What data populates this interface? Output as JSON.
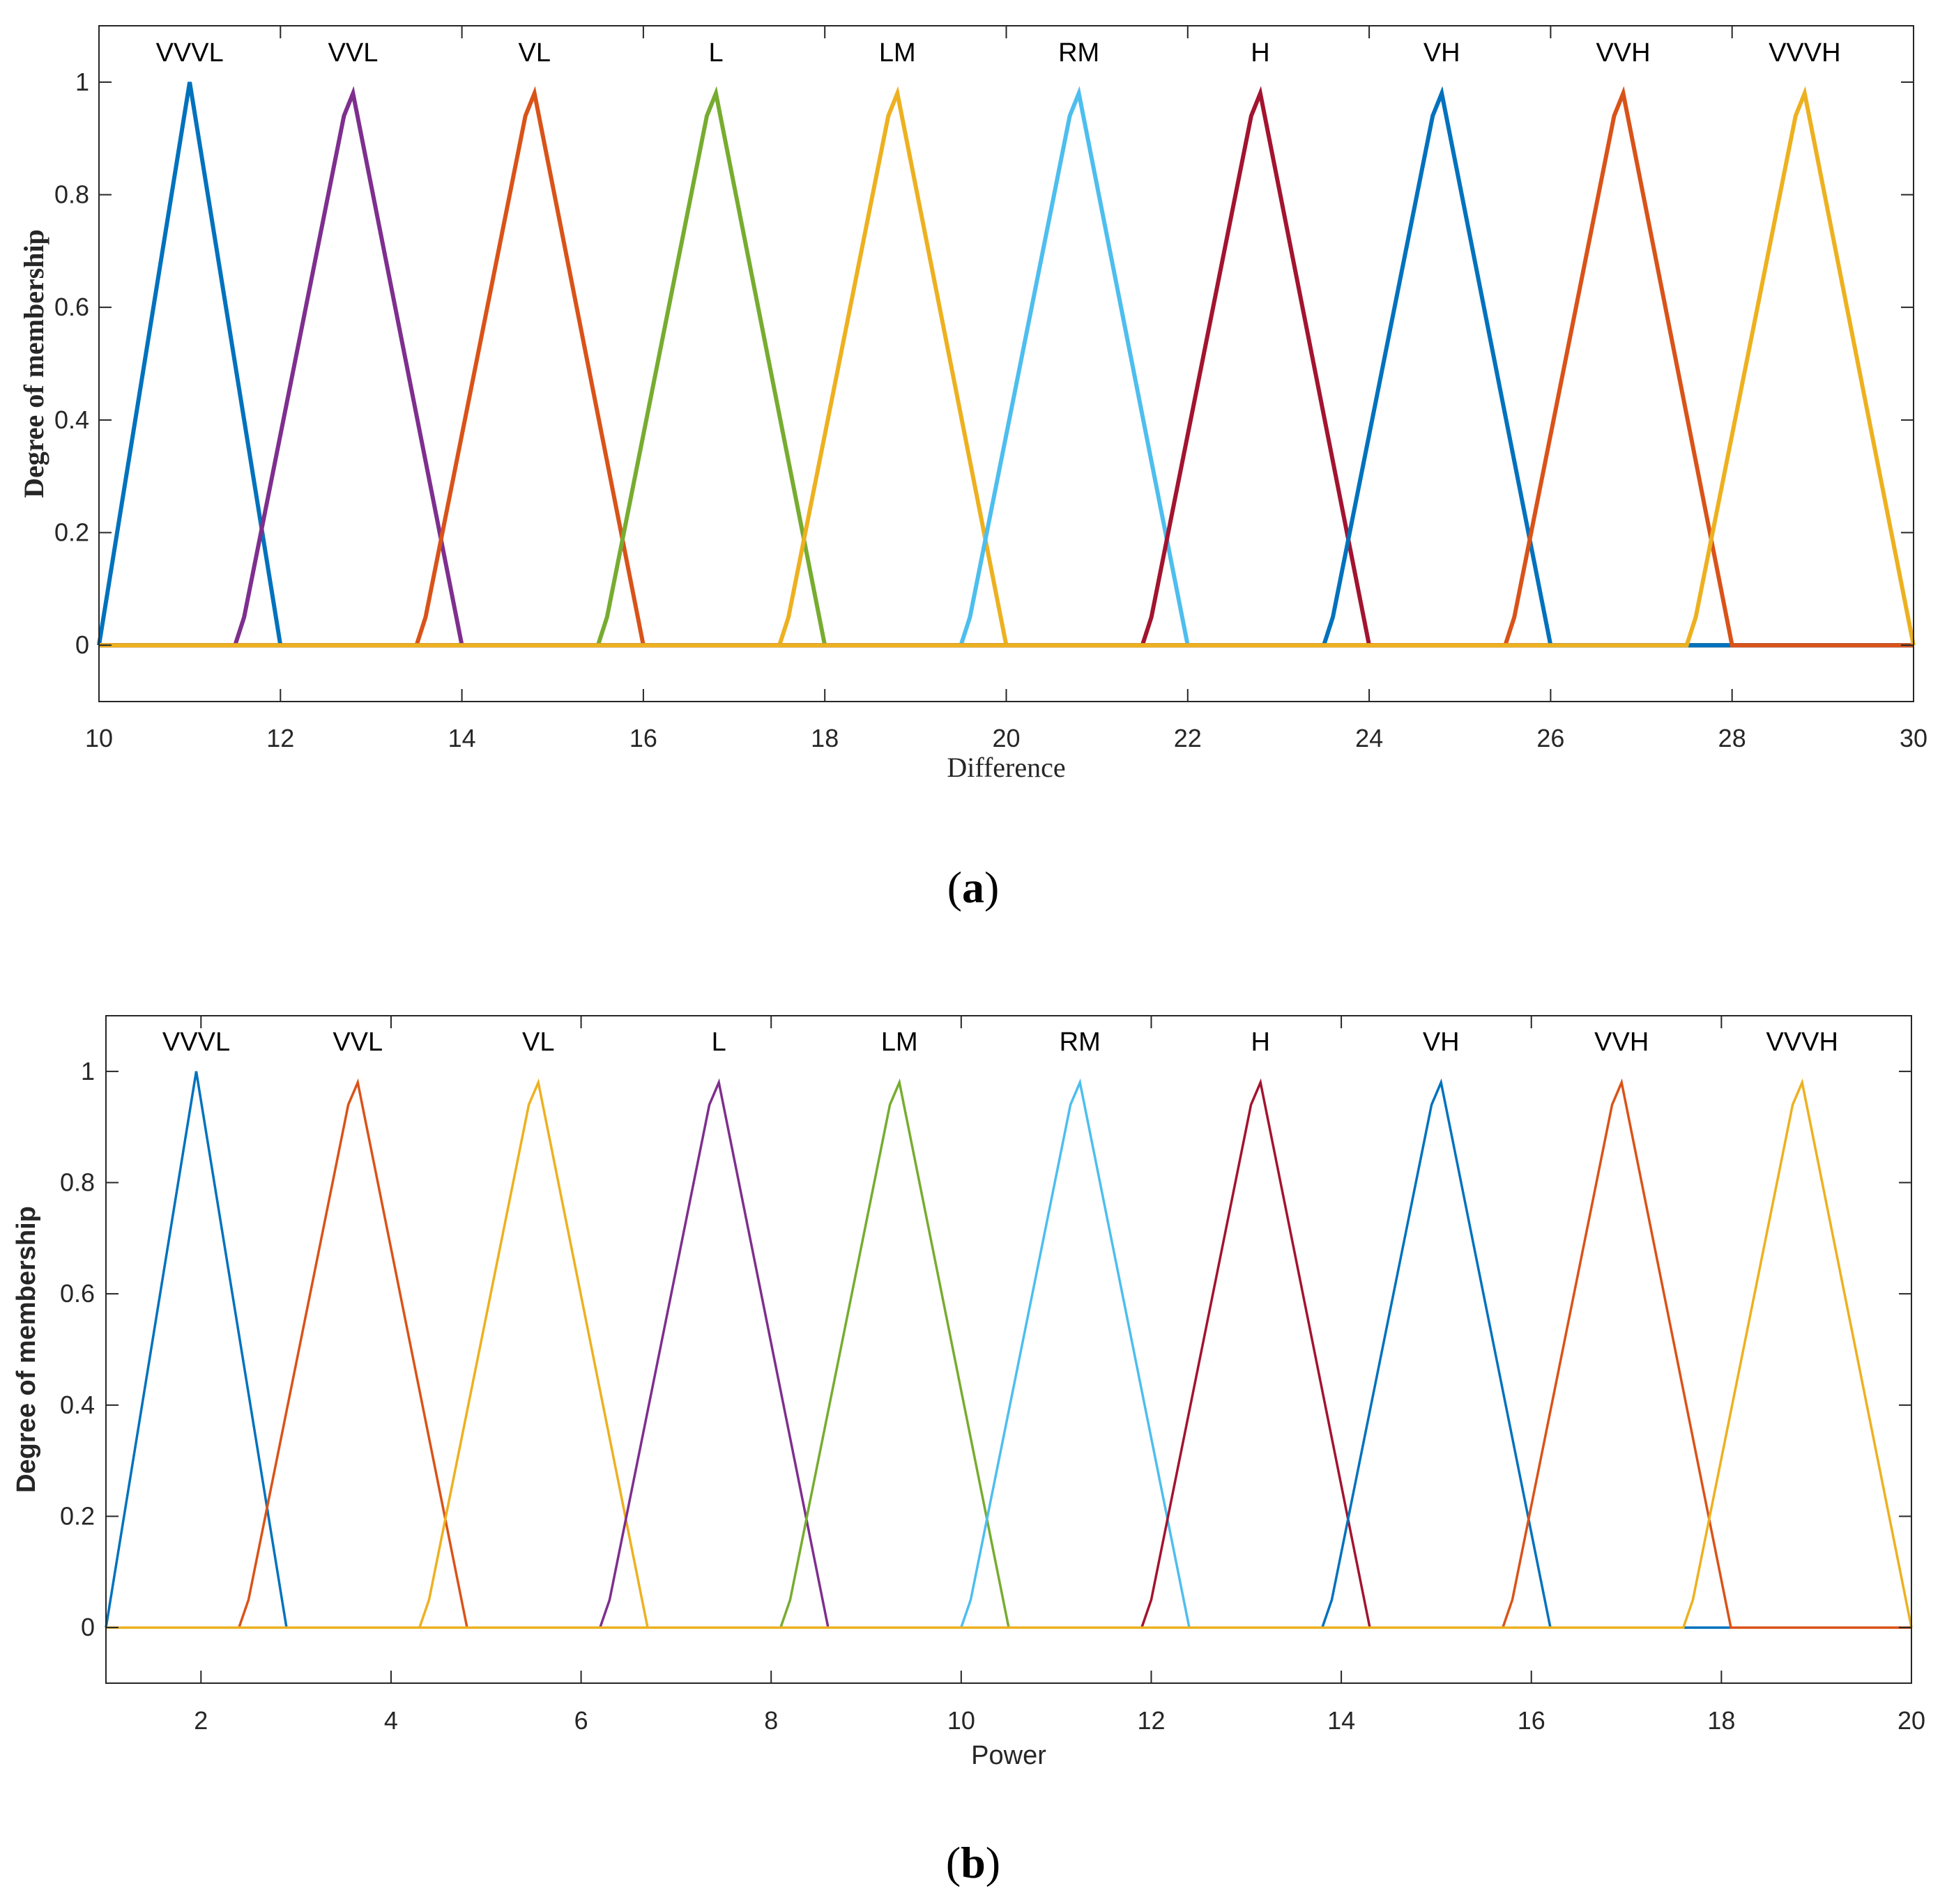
{
  "colors": {
    "blue": "#0072BD",
    "orange": "#D95319",
    "yellow": "#EDB120",
    "purple": "#7E2F8E",
    "green": "#77AC30",
    "cyan": "#4DBEEE",
    "red": "#A2142F"
  },
  "chart_data": [
    {
      "type": "line",
      "panel_label": "(a)",
      "xlabel": "Difference",
      "ylabel": "Degree of membership",
      "xlim": [
        10,
        30
      ],
      "ylim": [
        -0.1,
        1.1
      ],
      "xticks": [
        "10",
        "12",
        "14",
        "16",
        "18",
        "20",
        "22",
        "24",
        "26",
        "28",
        "30"
      ],
      "yticks": [
        "0",
        "0.2",
        "0.4",
        "0.6",
        "0.8",
        "1"
      ],
      "grid": false,
      "legend": "none",
      "series": [
        {
          "name": "VVVL",
          "color": "blue",
          "points": [
            [
              10,
              0
            ],
            [
              11,
              1
            ],
            [
              12,
              0
            ],
            [
              30,
              0
            ]
          ]
        },
        {
          "name": "VVL",
          "color": "purple",
          "points": [
            [
              10,
              0
            ],
            [
              11.5,
              0
            ],
            [
              11.6,
              0.05
            ],
            [
              12.7,
              0.94
            ],
            [
              12.8,
              0.98
            ],
            [
              14,
              0
            ],
            [
              30,
              0
            ]
          ]
        },
        {
          "name": "VL",
          "color": "orange",
          "points": [
            [
              10,
              0
            ],
            [
              13.5,
              0
            ],
            [
              13.6,
              0.05
            ],
            [
              14.7,
              0.94
            ],
            [
              14.8,
              0.98
            ],
            [
              16,
              0
            ],
            [
              30,
              0
            ]
          ]
        },
        {
          "name": "L",
          "color": "green",
          "points": [
            [
              10,
              0
            ],
            [
              15.5,
              0
            ],
            [
              15.6,
              0.05
            ],
            [
              16.7,
              0.94
            ],
            [
              16.8,
              0.98
            ],
            [
              18,
              0
            ],
            [
              30,
              0
            ]
          ]
        },
        {
          "name": "LM",
          "color": "yellow",
          "points": [
            [
              10,
              0
            ],
            [
              17.5,
              0
            ],
            [
              17.6,
              0.05
            ],
            [
              18.7,
              0.94
            ],
            [
              18.8,
              0.98
            ],
            [
              20,
              0
            ],
            [
              30,
              0
            ]
          ]
        },
        {
          "name": "RM",
          "color": "cyan",
          "points": [
            [
              10,
              0
            ],
            [
              19.5,
              0
            ],
            [
              19.6,
              0.05
            ],
            [
              20.7,
              0.94
            ],
            [
              20.8,
              0.98
            ],
            [
              22,
              0
            ],
            [
              30,
              0
            ]
          ]
        },
        {
          "name": "H",
          "color": "red",
          "points": [
            [
              10,
              0
            ],
            [
              21.5,
              0
            ],
            [
              21.6,
              0.05
            ],
            [
              22.7,
              0.94
            ],
            [
              22.8,
              0.98
            ],
            [
              24,
              0
            ],
            [
              30,
              0
            ]
          ]
        },
        {
          "name": "VH",
          "color": "blue",
          "points": [
            [
              10,
              0
            ],
            [
              23.5,
              0
            ],
            [
              23.6,
              0.05
            ],
            [
              24.7,
              0.94
            ],
            [
              24.8,
              0.98
            ],
            [
              26,
              0
            ],
            [
              30,
              0
            ]
          ]
        },
        {
          "name": "VVH",
          "color": "orange",
          "points": [
            [
              10,
              0
            ],
            [
              25.5,
              0
            ],
            [
              25.6,
              0.05
            ],
            [
              26.7,
              0.94
            ],
            [
              26.8,
              0.98
            ],
            [
              28,
              0
            ],
            [
              30,
              0
            ]
          ]
        },
        {
          "name": "VVVH",
          "color": "yellow",
          "points": [
            [
              10,
              0
            ],
            [
              27.5,
              0
            ],
            [
              27.6,
              0.05
            ],
            [
              28.7,
              0.94
            ],
            [
              28.8,
              0.98
            ],
            [
              30,
              0
            ]
          ]
        }
      ]
    },
    {
      "type": "line",
      "panel_label": "(b)",
      "xlabel": "Power",
      "ylabel": "Degree of membership",
      "xlim": [
        1,
        20
      ],
      "ylim": [
        -0.1,
        1.1
      ],
      "xticks": [
        "2",
        "4",
        "6",
        "8",
        "10",
        "12",
        "14",
        "16",
        "18",
        "20"
      ],
      "yticks": [
        "0",
        "0.2",
        "0.4",
        "0.6",
        "0.8",
        "1"
      ],
      "grid": false,
      "legend": "none",
      "series": [
        {
          "name": "VVVL",
          "color": "blue",
          "points": [
            [
              1,
              0
            ],
            [
              1.95,
              1
            ],
            [
              2.9,
              0
            ],
            [
              20,
              0
            ]
          ]
        },
        {
          "name": "VVL",
          "color": "orange",
          "points": [
            [
              1,
              0
            ],
            [
              2.4,
              0
            ],
            [
              2.5,
              0.05
            ],
            [
              3.55,
              0.94
            ],
            [
              3.65,
              0.98
            ],
            [
              4.8,
              0
            ],
            [
              20,
              0
            ]
          ]
        },
        {
          "name": "VL",
          "color": "yellow",
          "points": [
            [
              1,
              0
            ],
            [
              4.3,
              0
            ],
            [
              4.4,
              0.05
            ],
            [
              5.45,
              0.94
            ],
            [
              5.55,
              0.98
            ],
            [
              6.7,
              0
            ],
            [
              20,
              0
            ]
          ]
        },
        {
          "name": "L",
          "color": "purple",
          "points": [
            [
              1,
              0
            ],
            [
              6.2,
              0
            ],
            [
              6.3,
              0.05
            ],
            [
              7.35,
              0.94
            ],
            [
              7.45,
              0.98
            ],
            [
              8.6,
              0
            ],
            [
              20,
              0
            ]
          ]
        },
        {
          "name": "LM",
          "color": "green",
          "points": [
            [
              1,
              0
            ],
            [
              8.1,
              0
            ],
            [
              8.2,
              0.05
            ],
            [
              9.25,
              0.94
            ],
            [
              9.35,
              0.98
            ],
            [
              10.5,
              0
            ],
            [
              20,
              0
            ]
          ]
        },
        {
          "name": "RM",
          "color": "cyan",
          "points": [
            [
              1,
              0
            ],
            [
              10,
              0
            ],
            [
              10.1,
              0.05
            ],
            [
              11.15,
              0.94
            ],
            [
              11.25,
              0.98
            ],
            [
              12.4,
              0
            ],
            [
              20,
              0
            ]
          ]
        },
        {
          "name": "H",
          "color": "red",
          "points": [
            [
              1,
              0
            ],
            [
              11.9,
              0
            ],
            [
              12,
              0.05
            ],
            [
              13.05,
              0.94
            ],
            [
              13.15,
              0.98
            ],
            [
              14.3,
              0
            ],
            [
              20,
              0
            ]
          ]
        },
        {
          "name": "VH",
          "color": "blue",
          "points": [
            [
              1,
              0
            ],
            [
              13.8,
              0
            ],
            [
              13.9,
              0.05
            ],
            [
              14.95,
              0.94
            ],
            [
              15.05,
              0.98
            ],
            [
              16.2,
              0
            ],
            [
              20,
              0
            ]
          ]
        },
        {
          "name": "VVH",
          "color": "orange",
          "points": [
            [
              1,
              0
            ],
            [
              15.7,
              0
            ],
            [
              15.8,
              0.05
            ],
            [
              16.85,
              0.94
            ],
            [
              16.95,
              0.98
            ],
            [
              18.1,
              0
            ],
            [
              20,
              0
            ]
          ]
        },
        {
          "name": "VVVH",
          "color": "yellow",
          "points": [
            [
              1,
              0
            ],
            [
              17.6,
              0
            ],
            [
              17.7,
              0.05
            ],
            [
              18.75,
              0.94
            ],
            [
              18.85,
              0.98
            ],
            [
              20,
              0
            ]
          ]
        }
      ]
    }
  ]
}
